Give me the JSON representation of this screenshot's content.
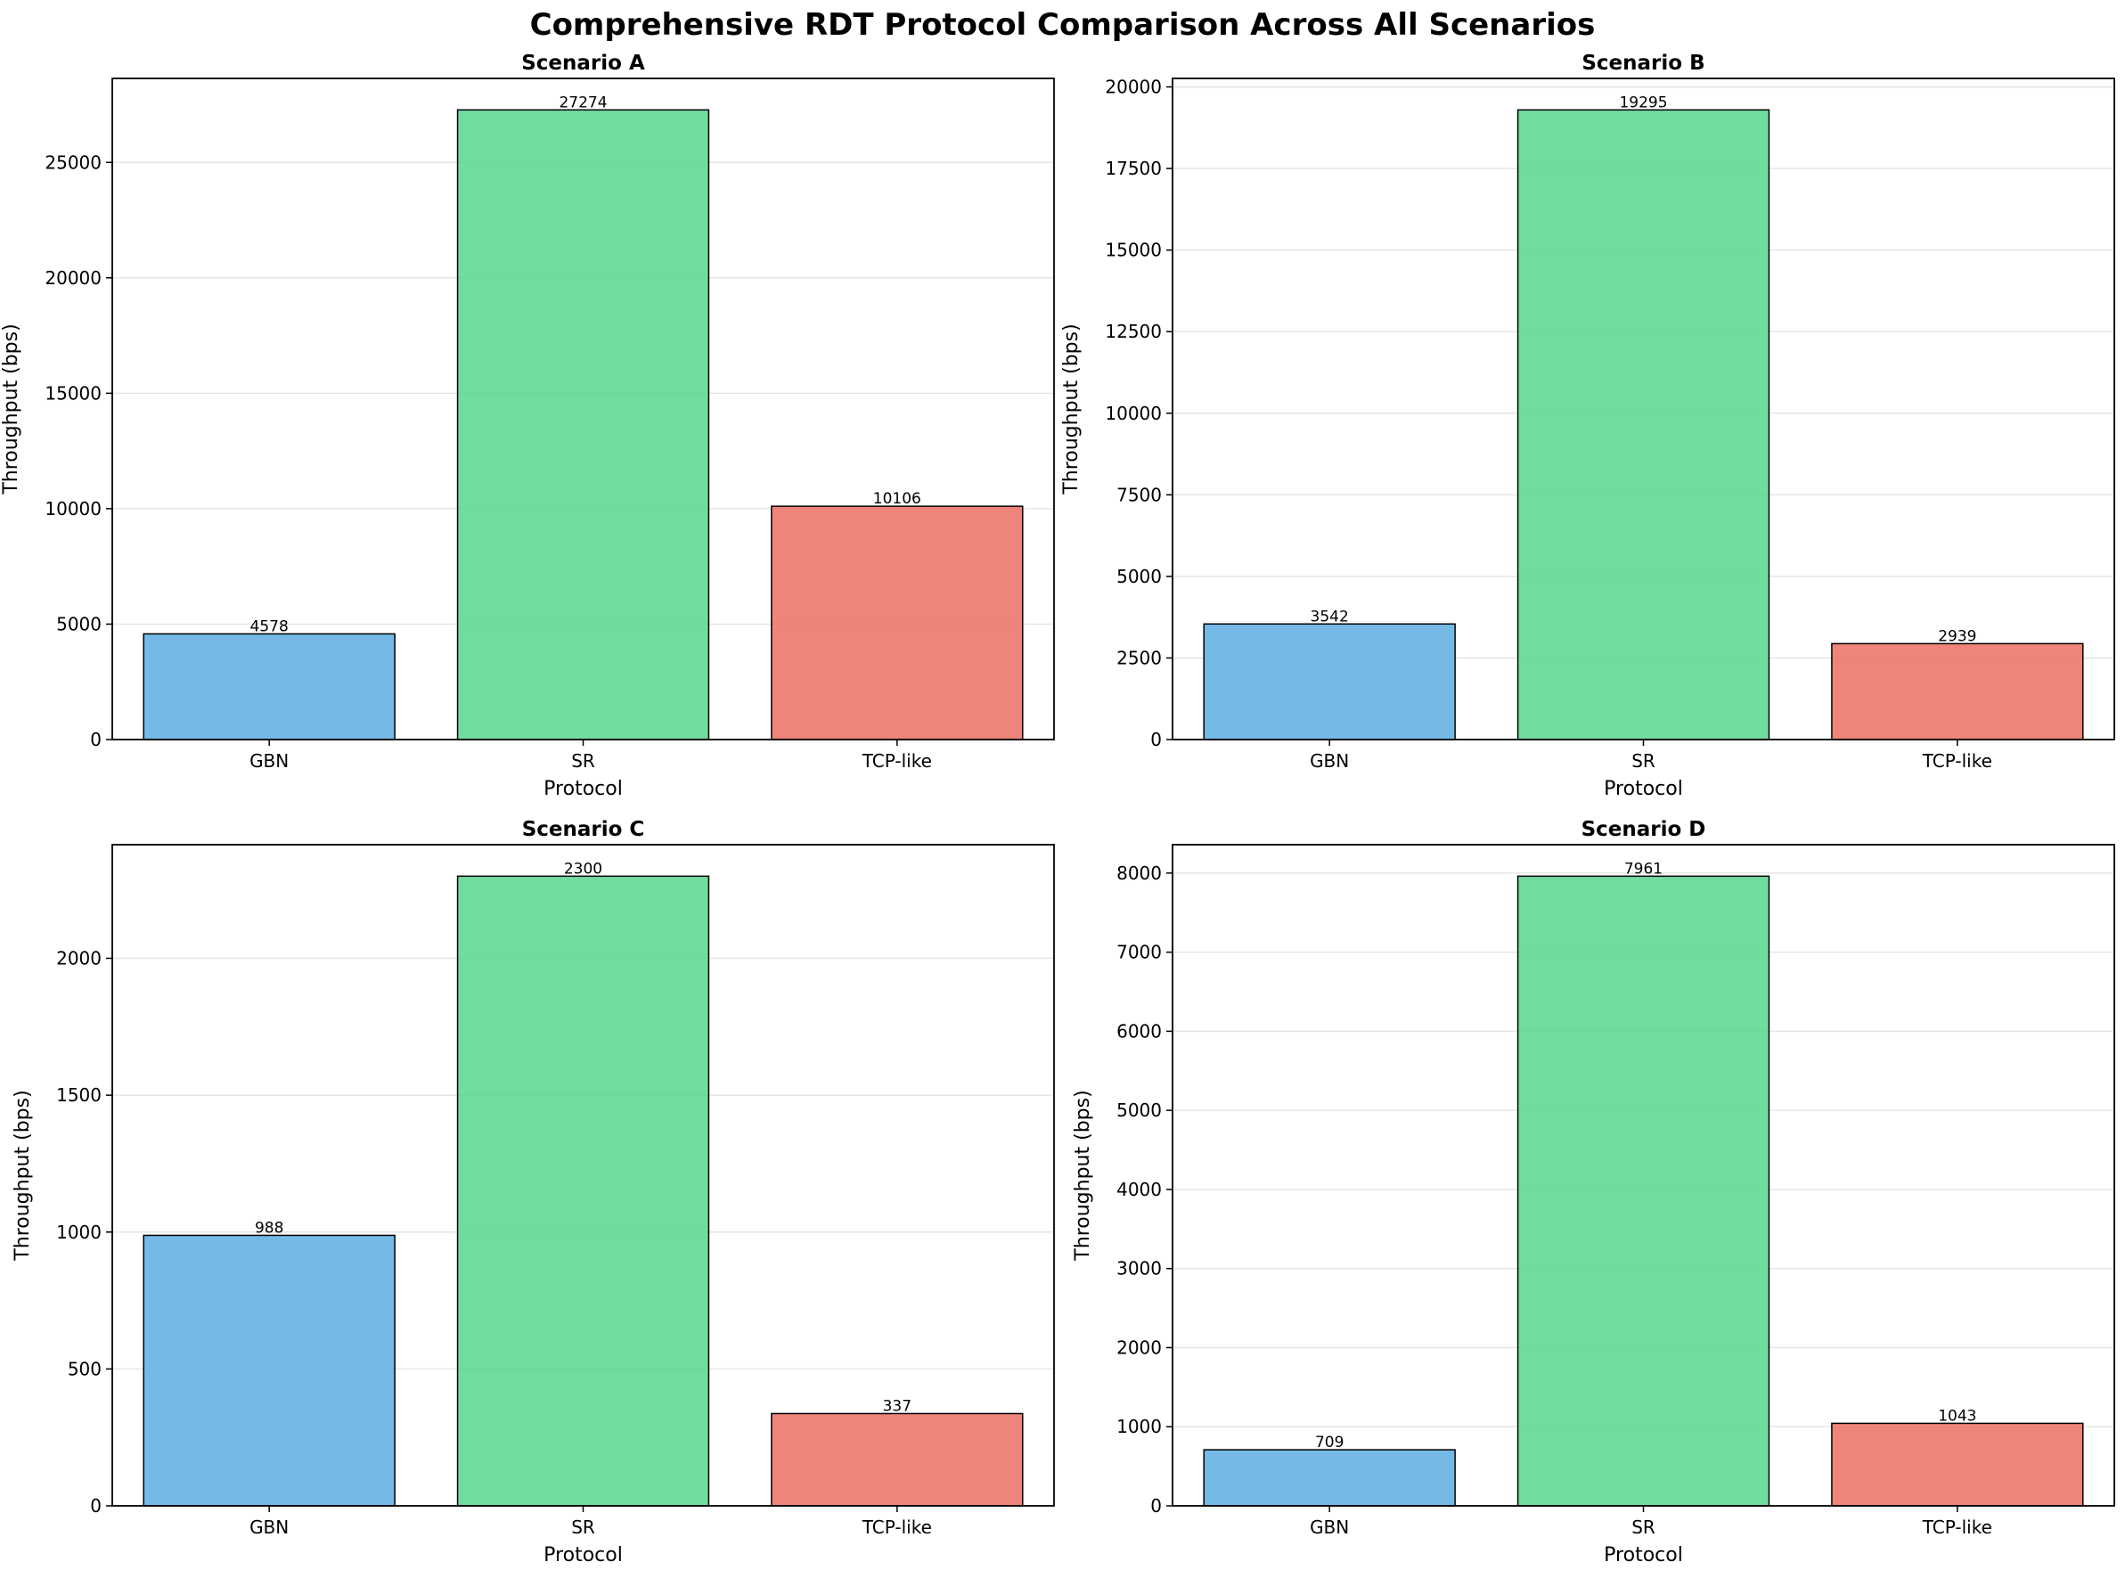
{
  "suptitle": "Comprehensive RDT Protocol Comparison Across All Scenarios",
  "colors": {
    "GBN": "#5dade2",
    "SR": "#58d68d",
    "TCP-like": "#ec7063",
    "edge": "#000000",
    "grid": "#e6e6e6"
  },
  "chart_data": [
    {
      "type": "bar",
      "title": "Scenario A",
      "categories": [
        "GBN",
        "SR",
        "TCP-like"
      ],
      "values": [
        4578,
        27274,
        10106
      ],
      "xlabel": "Protocol",
      "ylabel": "Throughput (bps)",
      "ylim": [
        0,
        28638
      ],
      "yticks": [
        0,
        5000,
        10000,
        15000,
        20000,
        25000
      ],
      "grid": "y"
    },
    {
      "type": "bar",
      "title": "Scenario B",
      "categories": [
        "GBN",
        "SR",
        "TCP-like"
      ],
      "values": [
        3542,
        19295,
        2939
      ],
      "xlabel": "Protocol",
      "ylabel": "Throughput (bps)",
      "ylim": [
        0,
        20260
      ],
      "yticks": [
        0,
        2500,
        5000,
        7500,
        10000,
        12500,
        15000,
        17500,
        20000
      ],
      "grid": "y"
    },
    {
      "type": "bar",
      "title": "Scenario C",
      "categories": [
        "GBN",
        "SR",
        "TCP-like"
      ],
      "values": [
        988,
        2300,
        337
      ],
      "xlabel": "Protocol",
      "ylabel": "Throughput (bps)",
      "ylim": [
        0,
        2415
      ],
      "yticks": [
        0,
        500,
        1000,
        1500,
        2000
      ],
      "grid": "y"
    },
    {
      "type": "bar",
      "title": "Scenario D",
      "categories": [
        "GBN",
        "SR",
        "TCP-like"
      ],
      "values": [
        709,
        7961,
        1043
      ],
      "xlabel": "Protocol",
      "ylabel": "Throughput (bps)",
      "ylim": [
        0,
        8359
      ],
      "yticks": [
        0,
        1000,
        2000,
        3000,
        4000,
        5000,
        6000,
        7000,
        8000
      ],
      "grid": "y"
    }
  ]
}
